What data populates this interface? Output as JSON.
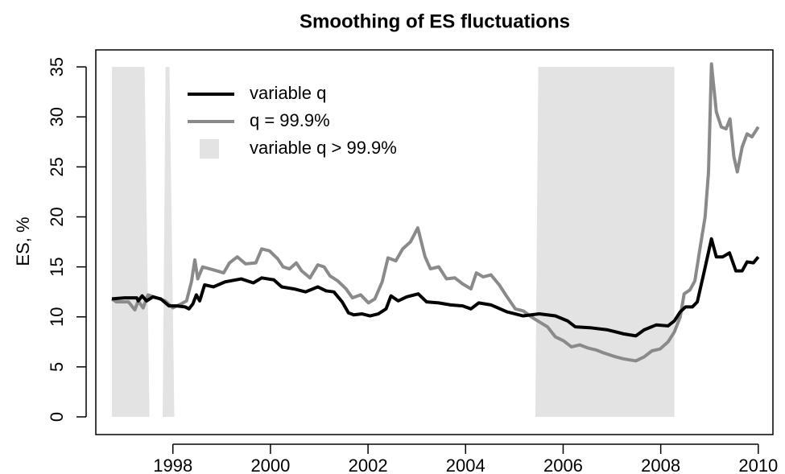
{
  "chart_data": {
    "type": "line",
    "title": "Smoothing of ES fluctuations",
    "y_label": "ES, %",
    "xlim": [
      1996.42,
      2010.3
    ],
    "ylim": [
      -1.77,
      36.7
    ],
    "xticks": [
      1998,
      2000,
      2002,
      2004,
      2006,
      2008,
      2010
    ],
    "yticks": [
      0,
      5,
      10,
      15,
      20,
      25,
      30,
      35
    ],
    "legend": "top-left",
    "regions": {
      "name": "variable q > 99.9%",
      "color": "#e3e3e3",
      "polygons": [
        {
          "x": [
            1996.75,
            1997.42,
            1997.52,
            1996.75
          ],
          "y": [
            35,
            35,
            0,
            0
          ]
        },
        {
          "x": [
            1997.85,
            1997.93,
            1998.03,
            1997.79
          ],
          "y": [
            35,
            35,
            0,
            0
          ]
        },
        {
          "x": [
            2005.49,
            2008.28,
            2008.28,
            2005.43
          ],
          "y": [
            35,
            35,
            0,
            0
          ]
        }
      ]
    },
    "series": [
      {
        "name": "variable q",
        "color": "#000000",
        "x": [
          1996.75,
          1997.01,
          1997.26,
          1997.29,
          1997.37,
          1997.46,
          1997.59,
          1997.75,
          1997.92,
          1998.08,
          1998.25,
          1998.33,
          1998.41,
          1998.48,
          1998.55,
          1998.65,
          1998.83,
          1999.07,
          1999.4,
          1999.65,
          1999.82,
          2000.07,
          2000.23,
          2000.48,
          2000.72,
          2000.97,
          2001.14,
          2001.3,
          2001.47,
          2001.6,
          2001.71,
          2001.88,
          2002.04,
          2002.21,
          2002.37,
          2002.47,
          2002.62,
          2002.79,
          2003.03,
          2003.2,
          2003.45,
          2003.69,
          2003.94,
          2004.11,
          2004.27,
          2004.52,
          2004.85,
          2005.18,
          2005.51,
          2005.84,
          2006.09,
          2006.25,
          2006.58,
          2006.91,
          2007.24,
          2007.49,
          2007.66,
          2007.91,
          2008.15,
          2008.28,
          2008.4,
          2008.51,
          2008.65,
          2008.75,
          2008.89,
          2009.04,
          2009.14,
          2009.27,
          2009.41,
          2009.54,
          2009.67,
          2009.77,
          2009.9,
          2010.0
        ],
        "values": [
          11.8,
          11.9,
          11.9,
          11.6,
          12.1,
          11.6,
          12.0,
          11.8,
          11.1,
          11.1,
          11.0,
          10.8,
          11.3,
          12.2,
          11.6,
          13.2,
          13.0,
          13.5,
          13.8,
          13.4,
          13.9,
          13.7,
          13.0,
          12.8,
          12.5,
          13.0,
          12.6,
          12.5,
          11.5,
          10.4,
          10.2,
          10.3,
          10.1,
          10.3,
          10.8,
          12.1,
          11.6,
          12.0,
          12.3,
          11.5,
          11.4,
          11.2,
          11.1,
          10.8,
          11.4,
          11.2,
          10.5,
          10.1,
          10.3,
          10.1,
          9.6,
          9.0,
          8.9,
          8.7,
          8.3,
          8.1,
          8.7,
          9.2,
          9.1,
          9.6,
          10.5,
          11.0,
          11.0,
          11.5,
          14.5,
          17.8,
          16.0,
          16.0,
          16.4,
          14.6,
          14.6,
          15.5,
          15.4,
          16.0
        ]
      },
      {
        "name": "q = 99.9%",
        "color": "#8a8a8a",
        "x": [
          1996.75,
          1996.84,
          1997.09,
          1997.22,
          1997.29,
          1997.39,
          1997.49,
          1997.67,
          1997.84,
          1998.0,
          1998.17,
          1998.28,
          1998.38,
          1998.45,
          1998.51,
          1998.61,
          1998.83,
          1999.04,
          1999.16,
          1999.32,
          1999.49,
          1999.7,
          1999.82,
          1999.98,
          2000.15,
          2000.26,
          2000.39,
          2000.53,
          2000.64,
          2000.81,
          2000.97,
          2001.1,
          2001.22,
          2001.38,
          2001.55,
          2001.68,
          2001.85,
          2002.01,
          2002.14,
          2002.29,
          2002.41,
          2002.57,
          2002.71,
          2002.87,
          2003.02,
          2003.17,
          2003.28,
          2003.45,
          2003.61,
          2003.78,
          2003.94,
          2004.11,
          2004.22,
          2004.36,
          2004.52,
          2004.69,
          2004.85,
          2005.02,
          2005.18,
          2005.35,
          2005.51,
          2005.68,
          2005.84,
          2006.01,
          2006.17,
          2006.34,
          2006.5,
          2006.67,
          2006.83,
          2007.08,
          2007.24,
          2007.49,
          2007.66,
          2007.82,
          2007.99,
          2008.15,
          2008.28,
          2008.4,
          2008.48,
          2008.6,
          2008.7,
          2008.81,
          2008.91,
          2008.98,
          2009.04,
          2009.14,
          2009.24,
          2009.34,
          2009.42,
          2009.5,
          2009.57,
          2009.67,
          2009.77,
          2009.87,
          2010.0
        ],
        "values": [
          11.8,
          11.5,
          11.5,
          10.7,
          11.6,
          10.9,
          12.2,
          11.9,
          11.6,
          10.9,
          11.3,
          11.6,
          13.5,
          15.7,
          13.8,
          15.0,
          14.7,
          14.4,
          15.4,
          16.0,
          15.3,
          15.4,
          16.8,
          16.6,
          15.8,
          15.0,
          14.8,
          15.4,
          14.6,
          13.9,
          15.2,
          15.0,
          14.1,
          13.6,
          12.8,
          11.9,
          12.2,
          11.4,
          11.8,
          13.5,
          15.9,
          15.6,
          16.8,
          17.5,
          18.9,
          16.0,
          14.8,
          15.0,
          13.8,
          13.9,
          13.3,
          12.8,
          14.4,
          14.0,
          14.2,
          13.2,
          12.0,
          10.8,
          10.6,
          10.0,
          9.5,
          9.0,
          8.0,
          7.6,
          7.0,
          7.2,
          6.9,
          6.7,
          6.4,
          6.0,
          5.8,
          5.6,
          6.0,
          6.6,
          6.8,
          7.5,
          8.5,
          10.0,
          12.3,
          12.7,
          13.6,
          17.0,
          20.0,
          24.5,
          35.3,
          30.5,
          29.0,
          28.8,
          29.8,
          26.0,
          24.5,
          27.0,
          28.3,
          28.0,
          29.0
        ]
      }
    ]
  }
}
